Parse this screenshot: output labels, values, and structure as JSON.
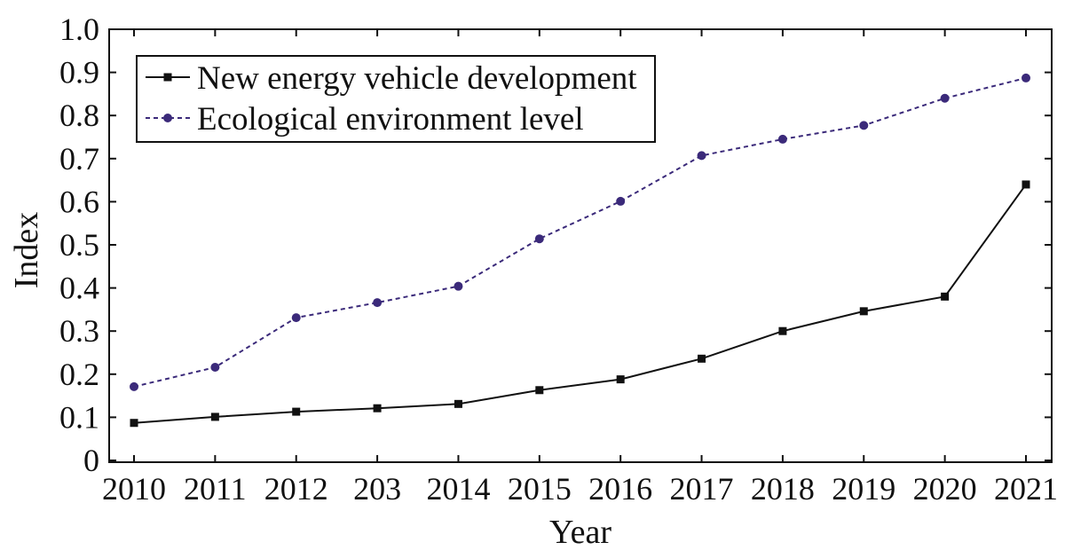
{
  "chart_data": {
    "type": "line",
    "title": "",
    "xlabel": "Year",
    "ylabel": "Index",
    "categories": [
      "2010",
      "2011",
      "2012",
      "203",
      "2014",
      "2015",
      "2016",
      "2017",
      "2018",
      "2019",
      "2020",
      "2021"
    ],
    "yticks": [
      "0",
      "0.1",
      "0.2",
      "0.3",
      "0.4",
      "0.5",
      "0.6",
      "0.7",
      "0.8",
      "0.9",
      "1.0"
    ],
    "ylim": [
      0,
      1.0
    ],
    "grid": false,
    "legend_position": "top-left",
    "series": [
      {
        "name": "New energy vehicle development",
        "color": "#111111",
        "marker": "square",
        "line_style": "solid",
        "values": [
          0.087,
          0.101,
          0.113,
          0.121,
          0.131,
          0.163,
          0.188,
          0.236,
          0.3,
          0.346,
          0.38,
          0.64
        ]
      },
      {
        "name": "Ecological environment level",
        "color": "#3b2a7a",
        "marker": "circle",
        "line_style": "dashed",
        "values": [
          0.171,
          0.216,
          0.331,
          0.366,
          0.404,
          0.514,
          0.601,
          0.707,
          0.745,
          0.777,
          0.84,
          0.887
        ]
      }
    ]
  }
}
